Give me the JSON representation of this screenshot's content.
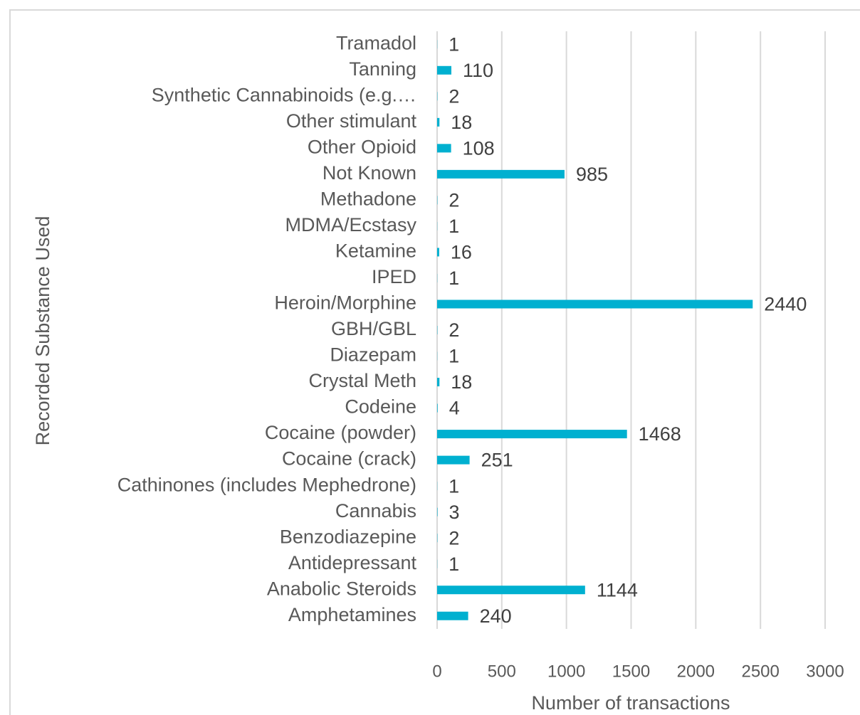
{
  "chart_data": {
    "type": "bar",
    "orientation": "horizontal",
    "categories": [
      "Tramadol",
      "Tanning",
      "Synthetic Cannabinoids (e.g.…",
      "Other stimulant",
      "Other Opioid",
      "Not Known",
      "Methadone",
      "MDMA/Ecstasy",
      "Ketamine",
      "IPED",
      "Heroin/Morphine",
      "GBH/GBL",
      "Diazepam",
      "Crystal Meth",
      "Codeine",
      "Cocaine (powder)",
      "Cocaine (crack)",
      "Cathinones (includes Mephedrone)",
      "Cannabis",
      "Benzodiazepine",
      "Antidepressant",
      "Anabolic Steroids",
      "Amphetamines"
    ],
    "values": [
      1,
      110,
      2,
      18,
      108,
      985,
      2,
      1,
      16,
      1,
      2440,
      2,
      1,
      18,
      4,
      1468,
      251,
      1,
      3,
      2,
      1,
      1144,
      240
    ],
    "color": "#00b0d0",
    "xlim": [
      0,
      3000
    ],
    "xticks": [
      0,
      500,
      1000,
      1500,
      2000,
      2500,
      3000
    ],
    "grid": true,
    "xlabel": "Number of transactions",
    "ylabel": "Recorded Substance Used"
  }
}
